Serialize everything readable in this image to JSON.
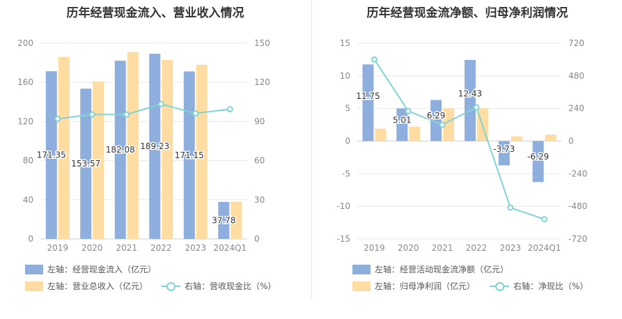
{
  "chart_data": [
    {
      "type": "bar+line",
      "title": "历年经营现金流入、营业收入情况",
      "categories": [
        "2019",
        "2020",
        "2021",
        "2022",
        "2023",
        "2024Q1"
      ],
      "left_axis": {
        "ticks": [
          "0",
          "40",
          "80",
          "120",
          "160",
          "200"
        ],
        "ylim": [
          0,
          200
        ]
      },
      "right_axis": {
        "ticks": [
          "0",
          "30",
          "60",
          "90",
          "120",
          "150"
        ],
        "ylim": [
          0,
          150
        ]
      },
      "series": [
        {
          "name": "左轴：经营现金流入（亿元）",
          "axis": "left",
          "kind": "bar",
          "color": "#8eaedd",
          "values": [
            171.35,
            153.57,
            182.08,
            189.23,
            171.15,
            37.78
          ],
          "labels": [
            "171.35",
            "153.57",
            "182.08",
            "189.23",
            "171.15",
            "37.78"
          ]
        },
        {
          "name": "左轴：营业总收入（亿元）",
          "axis": "left",
          "kind": "bar",
          "color": "#ffdca2",
          "values": [
            186,
            161,
            191,
            183,
            178,
            38
          ]
        },
        {
          "name": "右轴：营收现金比（%）",
          "axis": "right",
          "kind": "line",
          "color": "#7fd4d4",
          "values": [
            92,
            95.4,
            95.3,
            103.4,
            96.2,
            99.4
          ]
        }
      ]
    },
    {
      "type": "bar+line",
      "title": "历年经营现金流净额、归母净利润情况",
      "categories": [
        "2019",
        "2020",
        "2021",
        "2022",
        "2023",
        "2024Q1"
      ],
      "left_axis": {
        "ticks": [
          "-15",
          "-10",
          "-5",
          "0",
          "5",
          "10",
          "15"
        ],
        "ylim": [
          -15,
          15
        ]
      },
      "right_axis": {
        "ticks": [
          "-720",
          "-480",
          "-240",
          "0",
          "240",
          "480",
          "720"
        ],
        "ylim": [
          -720,
          720
        ]
      },
      "series": [
        {
          "name": "左轴：经营活动现金流净额（亿元）",
          "axis": "left",
          "kind": "bar",
          "color": "#8eaedd",
          "values": [
            11.75,
            5.01,
            6.29,
            12.43,
            -3.73,
            -6.29
          ],
          "labels": [
            "11.75",
            "5.01",
            "6.29",
            "12.43",
            "-3.73",
            "-6.29"
          ]
        },
        {
          "name": "左轴：归母净利润（亿元）",
          "axis": "left",
          "kind": "bar",
          "color": "#ffdca2",
          "values": [
            1.9,
            2.2,
            5.0,
            5.0,
            0.7,
            1.0
          ]
        },
        {
          "name": "右轴：净现比（%）",
          "axis": "right",
          "kind": "line",
          "color": "#7fd4d4",
          "values": [
            600,
            220,
            120,
            248,
            -490,
            -575
          ]
        }
      ]
    }
  ]
}
